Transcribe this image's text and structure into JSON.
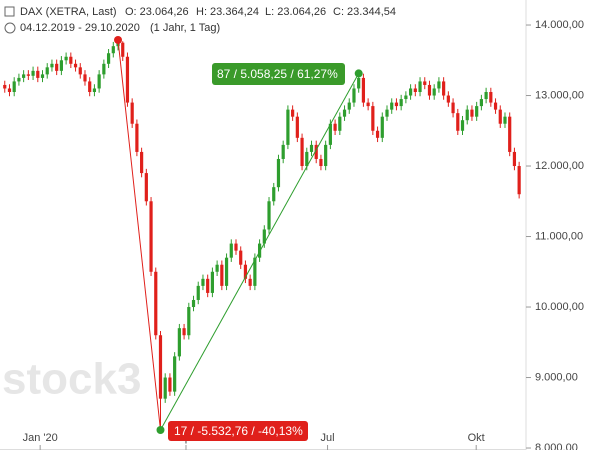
{
  "chart_data": {
    "type": "candlestick",
    "title": "DAX (XETRA, Last)",
    "ohlc_labels": [
      "O: 23.064,26",
      "H: 23.364,24",
      "L: 23.064,26",
      "C: 23.344,54"
    ],
    "subtitle": "04.12.2019 - 29.10.2020",
    "period": "(1 Jahr, 1 Tag)",
    "watermark": "stock3",
    "colors": {
      "up": "#2e9e2e",
      "down": "#e0201b"
    },
    "ylim": [
      7972,
      14355
    ],
    "yticks": [
      {
        "value": 9000,
        "label": "9.000,00"
      },
      {
        "value": 10000,
        "label": "10.000,00"
      },
      {
        "value": 11000,
        "label": "11.000,00"
      },
      {
        "value": 12000,
        "label": "12.000,00"
      },
      {
        "value": 13000,
        "label": "13.000,00"
      },
      {
        "value": 14000,
        "label": "14.000,00"
      },
      {
        "value": 8000,
        "label": "8.000,00"
      }
    ],
    "xlim": [
      -0.5,
      109.5
    ],
    "xticks": [
      {
        "value": 7.5,
        "label": "Jan '20"
      },
      {
        "value": 38.4,
        "label": "Apr"
      },
      {
        "value": 68.4,
        "label": "Jul"
      },
      {
        "value": 99.9,
        "label": "Okt"
      }
    ],
    "candles": {
      "open": [
        13150,
        13100,
        13050,
        13200,
        13250,
        13300,
        13280,
        13350,
        13250,
        13300,
        13400,
        13450,
        13350,
        13500,
        13550,
        13450,
        13400,
        13300,
        13200,
        13050,
        13100,
        13300,
        13450,
        13600,
        13700,
        13750,
        13550,
        12900,
        12600,
        12200,
        11900,
        11500,
        10500,
        9600,
        8700,
        9000,
        8800,
        9300,
        9700,
        9600,
        10000,
        10100,
        10300,
        10400,
        10200,
        10500,
        10600,
        10300,
        10700,
        10900,
        10800,
        10600,
        10400,
        10300,
        10700,
        10900,
        11100,
        11500,
        11700,
        12100,
        12300,
        12800,
        12700,
        12400,
        12000,
        12200,
        12300,
        12100,
        12000,
        12300,
        12600,
        12500,
        12700,
        12800,
        12900,
        13100,
        13250,
        12900,
        12850,
        12500,
        12400,
        12700,
        12800,
        12900,
        12850,
        12950,
        13000,
        13100,
        13050,
        13200,
        13150,
        13000,
        13100,
        13200,
        13000,
        12900,
        12750,
        12500,
        12650,
        12800,
        12700,
        12850,
        12950,
        13050,
        12900,
        12800,
        12600,
        12700,
        12200,
        12000
      ],
      "high": [
        13210,
        13160,
        13260,
        13310,
        13360,
        13360,
        13410,
        13410,
        13360,
        13460,
        13510,
        13510,
        13560,
        13610,
        13610,
        13510,
        13460,
        13360,
        13260,
        13160,
        13360,
        13510,
        13660,
        13760,
        13788.41,
        13770,
        13610,
        12960,
        12660,
        12260,
        11960,
        11560,
        10560,
        9660,
        9060,
        9060,
        9360,
        9760,
        9760,
        10060,
        10160,
        10360,
        10460,
        10460,
        10560,
        10660,
        10660,
        10760,
        10960,
        10960,
        10860,
        10660,
        10460,
        10760,
        10960,
        11160,
        11560,
        11760,
        12160,
        12360,
        12860,
        12860,
        12760,
        12460,
        12260,
        12360,
        12360,
        12160,
        12360,
        12660,
        12660,
        12760,
        12860,
        12960,
        13160,
        13313.9,
        13310,
        12960,
        12910,
        12560,
        12760,
        12860,
        12960,
        12960,
        13010,
        13060,
        13160,
        13160,
        13260,
        13260,
        13210,
        13160,
        13260,
        13260,
        13060,
        12960,
        12810,
        12710,
        12860,
        12860,
        12910,
        13010,
        13110,
        13110,
        12960,
        12860,
        12760,
        12760,
        12260,
        12060
      ],
      "low": [
        13040,
        12990,
        12990,
        13140,
        13190,
        13220,
        13220,
        13190,
        13190,
        13240,
        13340,
        13290,
        13290,
        13440,
        13390,
        13340,
        13240,
        13140,
        12990,
        12990,
        13040,
        13240,
        13390,
        13540,
        13640,
        13490,
        12840,
        12540,
        12140,
        11840,
        11440,
        10440,
        9540,
        8255.65,
        8640,
        8740,
        8740,
        9240,
        9540,
        9540,
        9940,
        10040,
        10240,
        10140,
        10140,
        10440,
        10240,
        10240,
        10640,
        10740,
        10540,
        10340,
        10240,
        10240,
        10640,
        10840,
        11040,
        11440,
        11640,
        12040,
        12240,
        12640,
        12340,
        11940,
        11940,
        12140,
        12040,
        11940,
        11940,
        12240,
        12440,
        12440,
        12640,
        12740,
        12840,
        13040,
        12840,
        12790,
        12440,
        12340,
        12340,
        12640,
        12740,
        12790,
        12790,
        12890,
        12940,
        12990,
        12990,
        13090,
        12940,
        12940,
        13040,
        12940,
        12840,
        12690,
        12440,
        12440,
        12590,
        12640,
        12640,
        12790,
        12890,
        12840,
        12740,
        12540,
        12540,
        12140,
        11940,
        11540
      ],
      "close": [
        13100,
        13050,
        13200,
        13250,
        13300,
        13280,
        13350,
        13250,
        13300,
        13400,
        13450,
        13350,
        13500,
        13550,
        13450,
        13400,
        13300,
        13200,
        13050,
        13100,
        13300,
        13450,
        13600,
        13700,
        13750,
        13550,
        12900,
        12600,
        12200,
        11900,
        11500,
        10500,
        9600,
        8700,
        9000,
        8800,
        9300,
        9700,
        9600,
        10000,
        10100,
        10300,
        10400,
        10200,
        10500,
        10600,
        10300,
        10700,
        10900,
        10800,
        10600,
        10400,
        10300,
        10700,
        10900,
        11100,
        11500,
        11700,
        12100,
        12300,
        12800,
        12700,
        12400,
        12000,
        12200,
        12300,
        12100,
        12000,
        12300,
        12600,
        12500,
        12700,
        12800,
        12900,
        13100,
        13250,
        12900,
        12850,
        12500,
        12400,
        12700,
        12800,
        12900,
        12850,
        12950,
        13000,
        13100,
        13050,
        13200,
        13150,
        13000,
        13100,
        13200,
        13000,
        12900,
        12750,
        12500,
        12650,
        12800,
        12700,
        12850,
        12950,
        13050,
        12900,
        12800,
        12600,
        12700,
        12200,
        12000,
        11600
      ]
    },
    "measure_labels": [
      "17 / -5.532,76 / -40,13%",
      "87 / 5.058,25 / 61,27%"
    ]
  }
}
